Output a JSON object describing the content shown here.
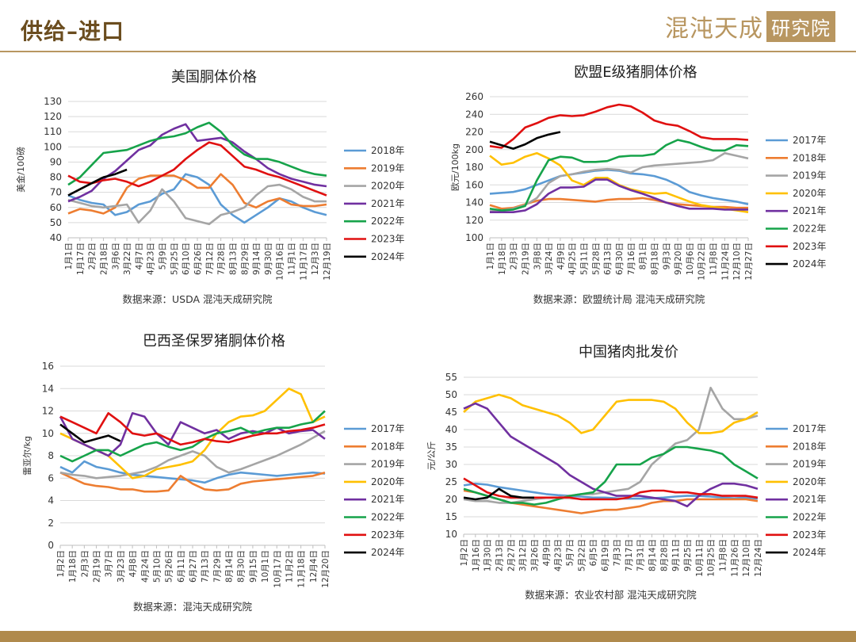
{
  "header": {
    "title": "供给–进口",
    "brand_name": "混沌天成",
    "brand_box": "研究院"
  },
  "colors": {
    "2017": "#5b9bd5",
    "2018": "#ed7d31",
    "2019": "#a5a5a5",
    "2020": "#ffc000",
    "2021": "#7030a0",
    "2022": "#16a34a",
    "2023": "#e01010",
    "2024": "#000000",
    "header_text": "#6b4d1f",
    "brand": "#b89660",
    "footer": "#b08a4c"
  },
  "chart_data": [
    {
      "id": "us",
      "type": "line",
      "title": "美国胴体价格",
      "ylabel": "美金/100磅",
      "ylim": [
        40,
        130
      ],
      "yticks": [
        40,
        50,
        60,
        70,
        80,
        90,
        100,
        110,
        120,
        130
      ],
      "xticks": [
        "1月1日",
        "1月17日",
        "2月2日",
        "2月18日",
        "3月6日",
        "3月22日",
        "4月7日",
        "4月23日",
        "5月9日",
        "5月25日",
        "6月10日",
        "6月26日",
        "7月12日",
        "7月28日",
        "8月13日",
        "8月29日",
        "9月14日",
        "9月30日",
        "10月16日",
        "11月1日",
        "11月17日",
        "12月3日",
        "12月19日"
      ],
      "source": "数据来源：USDA  混沌天成研究院",
      "series": [
        {
          "name": "2018年",
          "color": "#5b9bd5",
          "values": [
            68,
            65,
            63,
            62,
            55,
            57,
            62,
            64,
            69,
            72,
            82,
            80,
            75,
            62,
            55,
            50,
            55,
            60,
            66,
            64,
            60,
            57,
            55
          ]
        },
        {
          "name": "2019年",
          "color": "#ed7d31",
          "values": [
            56,
            59,
            58,
            56,
            60,
            73,
            79,
            81,
            81,
            81,
            78,
            73,
            73,
            82,
            75,
            63,
            60,
            64,
            66,
            62,
            61,
            61,
            62
          ]
        },
        {
          "name": "2020年",
          "color": "#a5a5a5",
          "values": [
            65,
            63,
            61,
            60,
            61,
            62,
            50,
            58,
            72,
            64,
            53,
            51,
            49,
            55,
            57,
            60,
            68,
            74,
            75,
            72,
            67,
            64,
            64
          ]
        },
        {
          "name": "2021年",
          "color": "#7030a0",
          "values": [
            64,
            67,
            71,
            79,
            84,
            91,
            98,
            101,
            108,
            112,
            115,
            104,
            105,
            106,
            103,
            97,
            92,
            86,
            82,
            79,
            77,
            75,
            74
          ]
        },
        {
          "name": "2022年",
          "color": "#16a34a",
          "values": [
            75,
            80,
            88,
            96,
            97,
            98,
            101,
            104,
            106,
            107,
            109,
            113,
            116,
            110,
            101,
            95,
            92,
            92,
            90,
            87,
            84,
            82,
            81
          ]
        },
        {
          "name": "2023年",
          "color": "#e01010",
          "values": [
            81,
            77,
            76,
            78,
            79,
            77,
            74,
            77,
            81,
            85,
            92,
            98,
            103,
            101,
            94,
            87,
            85,
            82,
            80,
            77,
            74,
            71,
            68
          ]
        },
        {
          "name": "2024年",
          "color": "#000000",
          "values": [
            68,
            72,
            76,
            80,
            82,
            85
          ]
        }
      ]
    },
    {
      "id": "eu",
      "type": "line",
      "title": "欧盟E级猪胴体价格",
      "ylabel": "欧元/100kg",
      "ylim": [
        100,
        260
      ],
      "yticks": [
        100,
        120,
        140,
        160,
        180,
        200,
        220,
        240,
        260
      ],
      "xticks": [
        "1月1日",
        "1月18日",
        "2月3日",
        "2月19日",
        "3月8日",
        "3月24日",
        "4月9日",
        "4月25日",
        "5月11日",
        "5月28日",
        "6月13日",
        "6月30日",
        "7月16日",
        "8月1日",
        "8月18日",
        "9月3日",
        "9月20日",
        "10月6日",
        "10月22日",
        "11月8日",
        "11月24日",
        "12月10日",
        "12月27日"
      ],
      "source": "数据来源：欧盟统计局  混沌天成研究院",
      "series": [
        {
          "name": "2017年",
          "color": "#5b9bd5",
          "values": [
            150,
            151,
            152,
            155,
            160,
            165,
            170,
            172,
            174,
            176,
            177,
            176,
            173,
            172,
            170,
            166,
            160,
            152,
            148,
            145,
            143,
            141,
            138
          ]
        },
        {
          "name": "2018年",
          "color": "#ed7d31",
          "values": [
            137,
            133,
            134,
            138,
            142,
            144,
            144,
            143,
            142,
            141,
            143,
            144,
            144,
            145,
            143,
            140,
            138,
            137,
            136,
            135,
            135,
            134,
            134
          ]
        },
        {
          "name": "2019年",
          "color": "#a5a5a5",
          "values": [
            130,
            131,
            133,
            137,
            145,
            162,
            170,
            172,
            175,
            177,
            178,
            177,
            174,
            180,
            182,
            183,
            184,
            185,
            186,
            188,
            196,
            193,
            190
          ]
        },
        {
          "name": "2020年",
          "color": "#ffc000",
          "values": [
            193,
            183,
            185,
            192,
            196,
            190,
            182,
            165,
            160,
            168,
            168,
            160,
            155,
            152,
            150,
            151,
            146,
            141,
            137,
            135,
            133,
            131,
            129
          ]
        },
        {
          "name": "2021年",
          "color": "#7030a0",
          "values": [
            129,
            129,
            129,
            131,
            138,
            150,
            157,
            157,
            158,
            166,
            166,
            159,
            154,
            150,
            145,
            140,
            136,
            133,
            133,
            133,
            132,
            132,
            132
          ]
        },
        {
          "name": "2022年",
          "color": "#16a34a",
          "values": [
            133,
            131,
            132,
            136,
            165,
            188,
            192,
            191,
            186,
            186,
            187,
            192,
            193,
            193,
            195,
            205,
            211,
            208,
            203,
            199,
            199,
            205,
            204
          ]
        },
        {
          "name": "2023年",
          "color": "#e01010",
          "values": [
            204,
            202,
            212,
            225,
            230,
            236,
            239,
            238,
            239,
            243,
            248,
            251,
            249,
            242,
            233,
            229,
            227,
            221,
            214,
            212,
            212,
            212,
            211
          ]
        },
        {
          "name": "2024年",
          "color": "#000000",
          "values": [
            209,
            205,
            201,
            206,
            213,
            217,
            220
          ]
        }
      ]
    },
    {
      "id": "br",
      "type": "line",
      "title": "巴西圣保罗猪胴体价格",
      "ylabel": "雷亚尔/kg",
      "ylim": [
        0,
        16
      ],
      "yticks": [
        0,
        2,
        4,
        6,
        8,
        10,
        12,
        14,
        16
      ],
      "xticks": [
        "1月2日",
        "1月18日",
        "2月3日",
        "2月19日",
        "3月7日",
        "3月23日",
        "4月8日",
        "4月24日",
        "5月10日",
        "5月26日",
        "6月11日",
        "6月27日",
        "7月13日",
        "7月29日",
        "8月14日",
        "8月30日",
        "9月15日",
        "10月1日",
        "10月17日",
        "11月2日",
        "11月18日",
        "12月4日",
        "12月20日"
      ],
      "source": "数据来源：混沌天成研究院",
      "series": [
        {
          "name": "2017年",
          "color": "#5b9bd5",
          "values": [
            7.0,
            6.5,
            7.5,
            7.0,
            6.8,
            6.5,
            6.3,
            6.2,
            6.1,
            6.0,
            5.9,
            5.8,
            5.6,
            6.0,
            6.3,
            6.5,
            6.4,
            6.3,
            6.2,
            6.3,
            6.4,
            6.5,
            6.4
          ]
        },
        {
          "name": "2018年",
          "color": "#ed7d31",
          "values": [
            6.5,
            6.0,
            5.5,
            5.3,
            5.2,
            5.0,
            5.0,
            4.8,
            4.8,
            4.9,
            6.2,
            5.5,
            5.0,
            4.9,
            5.0,
            5.5,
            5.7,
            5.8,
            5.9,
            6.0,
            6.1,
            6.2,
            6.5
          ]
        },
        {
          "name": "2019年",
          "color": "#a5a5a5",
          "values": [
            6.5,
            6.3,
            6.2,
            6.0,
            6.1,
            6.2,
            6.4,
            6.6,
            7.0,
            7.6,
            8.0,
            8.4,
            8.0,
            7.0,
            6.5,
            6.8,
            7.2,
            7.6,
            8.0,
            8.5,
            9.0,
            9.6,
            10.2
          ]
        },
        {
          "name": "2020年",
          "color": "#ffc000",
          "values": [
            10.0,
            9.5,
            9.0,
            8.5,
            8.0,
            7.0,
            6.0,
            6.2,
            6.8,
            7.0,
            7.2,
            7.5,
            8.5,
            10.0,
            11.0,
            11.5,
            11.6,
            12.0,
            13.0,
            14.0,
            13.5,
            11.0,
            11.5
          ]
        },
        {
          "name": "2021年",
          "color": "#7030a0",
          "values": [
            11.5,
            9.5,
            9.0,
            8.5,
            8.0,
            9.0,
            11.8,
            11.5,
            10.0,
            9.0,
            11.0,
            10.5,
            10.0,
            10.3,
            9.5,
            10.0,
            10.2,
            10.0,
            10.5,
            10.0,
            10.2,
            10.3,
            9.5
          ]
        },
        {
          "name": "2022年",
          "color": "#16a34a",
          "values": [
            8.0,
            7.5,
            8.0,
            8.5,
            8.5,
            8.0,
            8.5,
            9.0,
            9.2,
            8.8,
            8.5,
            8.8,
            9.5,
            10.0,
            10.2,
            10.5,
            10.0,
            10.3,
            10.5,
            10.5,
            10.8,
            11.0,
            12.0
          ]
        },
        {
          "name": "2023年",
          "color": "#e01010",
          "values": [
            11.5,
            11.0,
            10.5,
            10.0,
            11.8,
            11.0,
            10.0,
            9.8,
            10.0,
            9.5,
            9.0,
            9.2,
            9.5,
            9.3,
            9.2,
            9.5,
            9.8,
            10.0,
            10.0,
            10.2,
            10.3,
            10.5,
            10.8
          ]
        },
        {
          "name": "2024年",
          "color": "#000000",
          "values": [
            10.8,
            10.0,
            9.2,
            9.5,
            9.8,
            9.3
          ]
        }
      ]
    },
    {
      "id": "cn",
      "type": "line",
      "title": "中国猪肉批发价",
      "ylabel": "元/公斤",
      "ylim": [
        10,
        55
      ],
      "yticks": [
        10,
        15,
        20,
        25,
        30,
        35,
        40,
        45,
        50,
        55
      ],
      "xticks": [
        "1月2日",
        "1月16日",
        "1月30日",
        "2月13日",
        "2月27日",
        "3月12日",
        "3月26日",
        "4月9日",
        "4月23日",
        "5月7日",
        "5月22日",
        "6月5日",
        "6月19日",
        "7月3日",
        "7月17日",
        "7月31日",
        "8月14日",
        "8月28日",
        "9月11日",
        "9月25日",
        "10月11日",
        "10月25日",
        "11月8日",
        "11月26日",
        "12月10日",
        "12月24日"
      ],
      "source": "数据来源：农业农村部  混沌天成研究院",
      "series": [
        {
          "name": "2017年",
          "color": "#5b9bd5",
          "values": [
            24,
            24.5,
            24.2,
            23.5,
            23,
            22.5,
            22,
            21.5,
            21.2,
            21,
            20.8,
            20.5,
            20.5,
            20.3,
            20.2,
            20.2,
            20.3,
            20.5,
            20.8,
            21,
            21,
            20.8,
            20.5,
            20.3,
            20.5,
            20.2
          ]
        },
        {
          "name": "2018年",
          "color": "#ed7d31",
          "values": [
            22.5,
            22,
            21,
            20,
            19,
            18.5,
            18,
            17.5,
            17,
            16.5,
            16,
            16.5,
            17,
            17,
            17.5,
            18,
            19,
            19.5,
            19.5,
            20,
            20,
            20,
            20,
            20,
            20,
            19.5
          ]
        },
        {
          "name": "2019年",
          "color": "#a5a5a5",
          "values": [
            20,
            19.5,
            19.5,
            19,
            19,
            19.5,
            20,
            20.5,
            20.5,
            21,
            21.5,
            21.5,
            22,
            22.5,
            23,
            25,
            30,
            33,
            36,
            37,
            40,
            52,
            46,
            43,
            43,
            44
          ]
        },
        {
          "name": "2020年",
          "color": "#ffc000",
          "values": [
            45,
            48,
            49,
            50,
            49,
            47,
            46,
            45,
            44,
            42,
            39,
            40,
            44,
            48,
            48.5,
            48.5,
            48.5,
            48,
            46,
            42,
            39,
            39,
            39.5,
            42,
            43,
            45
          ]
        },
        {
          "name": "2021年",
          "color": "#7030a0",
          "values": [
            46,
            47.5,
            46,
            42,
            38,
            36,
            34,
            32,
            30,
            27,
            25,
            23,
            22,
            21,
            21,
            21,
            20.5,
            20,
            19.5,
            18,
            21,
            23,
            24.5,
            24.5,
            24,
            23
          ]
        },
        {
          "name": "2022年",
          "color": "#16a34a",
          "values": [
            23,
            22,
            21,
            20,
            19,
            19,
            18.5,
            19,
            20,
            21,
            21.5,
            22,
            25,
            30,
            30,
            30,
            32,
            33,
            35,
            35,
            34.5,
            34,
            33,
            30,
            28,
            26
          ]
        },
        {
          "name": "2023年",
          "color": "#e01010",
          "values": [
            26,
            24,
            22,
            21,
            20.5,
            20.5,
            20.5,
            20.5,
            20.5,
            20.5,
            20,
            20,
            20,
            20,
            20.5,
            22,
            22.5,
            22.5,
            22,
            22,
            21.5,
            21.5,
            21,
            21,
            21,
            20.5
          ]
        },
        {
          "name": "2024年",
          "color": "#000000",
          "values": [
            20.5,
            20,
            20.5,
            23,
            21,
            20.5,
            20.5
          ]
        }
      ]
    }
  ]
}
